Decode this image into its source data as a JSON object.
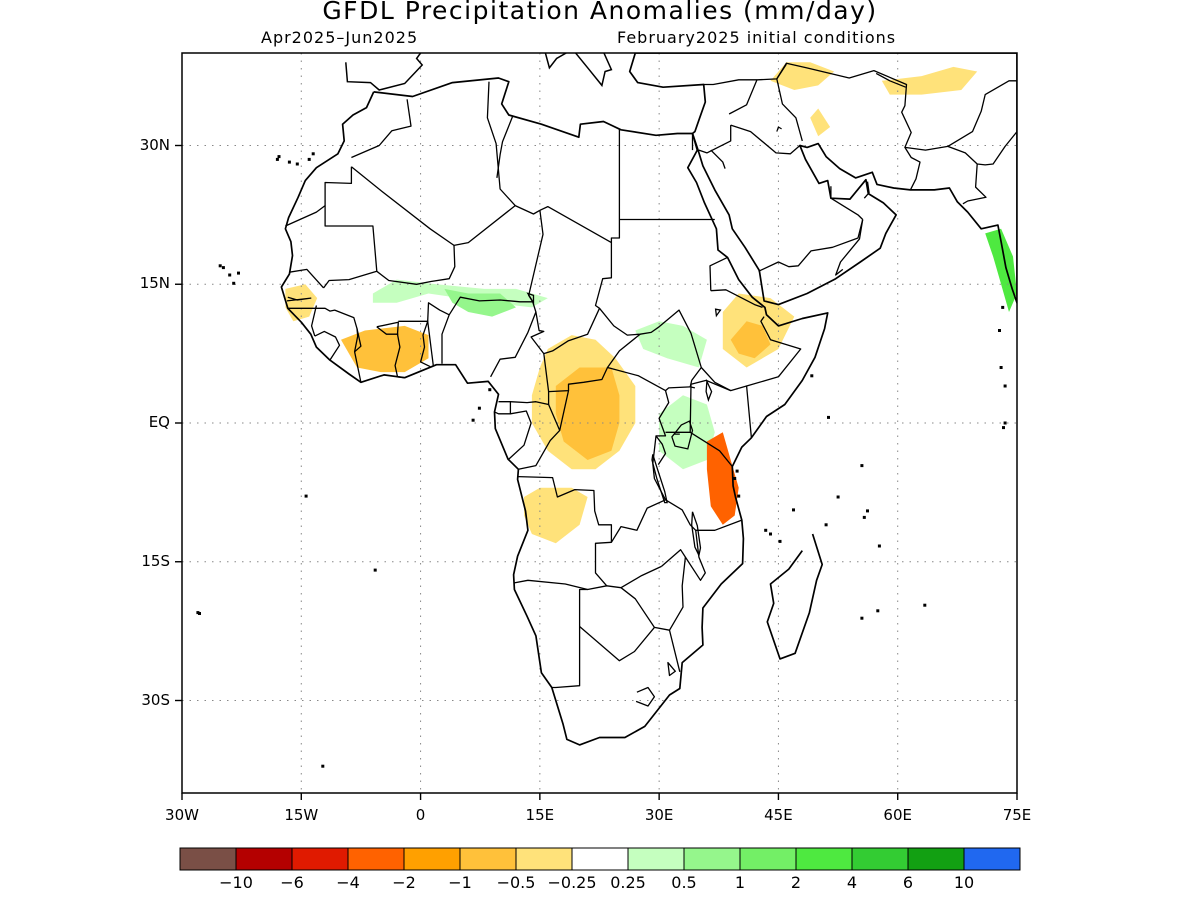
{
  "title": "GFDL Precipitation Anomalies (mm/day)",
  "season": "Apr2025–Jun2025",
  "initial_conditions": "February2025 initial conditions",
  "map": {
    "lon_range": [
      -30,
      75
    ],
    "lat_range": [
      -40,
      40
    ],
    "lon_ticks": [
      {
        "value": -30,
        "label": "30W"
      },
      {
        "value": -15,
        "label": "15W"
      },
      {
        "value": 0,
        "label": "0"
      },
      {
        "value": 15,
        "label": "15E"
      },
      {
        "value": 30,
        "label": "30E"
      },
      {
        "value": 45,
        "label": "45E"
      },
      {
        "value": 60,
        "label": "60E"
      },
      {
        "value": 75,
        "label": "75E"
      }
    ],
    "lat_ticks": [
      {
        "value": 30,
        "label": "30N"
      },
      {
        "value": 15,
        "label": "15N"
      },
      {
        "value": 0,
        "label": "EQ"
      },
      {
        "value": -15,
        "label": "15S"
      },
      {
        "value": -30,
        "label": "30S"
      }
    ],
    "gridlines": "dotted"
  },
  "colorbar": {
    "colors": [
      "#7a4f46",
      "#b40000",
      "#e01a00",
      "#ff6200",
      "#ffa000",
      "#ffc13a",
      "#ffe27a",
      "#ffffff",
      "#c5ffbf",
      "#95f68c",
      "#73ef66",
      "#4ee940",
      "#33cc33",
      "#12a012",
      "#2068f0"
    ],
    "labels": [
      "−10",
      "−6",
      "−4",
      "−2",
      "−1",
      "−0.5",
      "−0.25",
      "0.25",
      "0.5",
      "1",
      "2",
      "4",
      "6",
      "10"
    ]
  },
  "anomaly_regions": [
    {
      "region": "Senegal / Guinea coast",
      "level": -0.5,
      "color": "#ffe27a"
    },
    {
      "region": "Ivory Coast / Ghana / Togo",
      "level": -1,
      "color": "#ffc13a"
    },
    {
      "region": "Sahel (Mali-Niger-Chad)",
      "level": 0.5,
      "color": "#c5ffbf"
    },
    {
      "region": "Nigeria / Niger border",
      "level": 1,
      "color": "#95f68c"
    },
    {
      "region": "Congo Basin / DRC",
      "level": -0.5,
      "color": "#ffe27a"
    },
    {
      "region": "Central DRC",
      "level": -1,
      "color": "#ffc13a"
    },
    {
      "region": "Angola",
      "level": -0.5,
      "color": "#ffe27a"
    },
    {
      "region": "Ethiopia",
      "level": -0.5,
      "color": "#ffe27a"
    },
    {
      "region": "Ethiopian highlands",
      "level": -1,
      "color": "#ffc13a"
    },
    {
      "region": "Sudan / South Sudan",
      "level": 0.5,
      "color": "#c5ffbf"
    },
    {
      "region": "East Africa lakes",
      "level": 0.5,
      "color": "#c5ffbf"
    },
    {
      "region": "Tanzania coast",
      "level": -2,
      "color": "#ff6200"
    },
    {
      "region": "Western India coast",
      "level": 2,
      "color": "#4ee940"
    },
    {
      "region": "Iran / Pakistan",
      "level": -0.5,
      "color": "#ffe27a"
    }
  ]
}
